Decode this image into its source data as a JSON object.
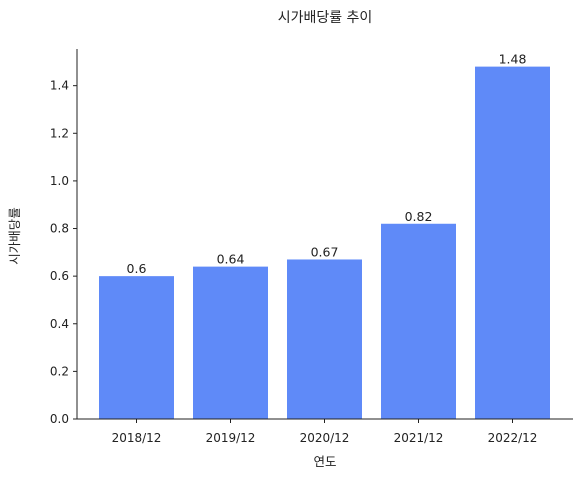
{
  "chart_data": {
    "type": "bar",
    "title": "시가배당률 추이",
    "xlabel": "연도",
    "ylabel": "시가배당률",
    "categories": [
      "2018/12",
      "2019/12",
      "2020/12",
      "2021/12",
      "2022/12"
    ],
    "values": [
      0.6,
      0.64,
      0.67,
      0.82,
      1.48
    ],
    "data_labels": [
      "0.6",
      "0.64",
      "0.67",
      "0.82",
      "1.48"
    ],
    "ylim": [
      0,
      1.554
    ],
    "yticks": [
      0.0,
      0.2,
      0.4,
      0.6,
      0.8,
      1.0,
      1.2,
      1.4
    ],
    "ytick_labels": [
      "0.0",
      "0.2",
      "0.4",
      "0.6",
      "0.8",
      "1.0",
      "1.2",
      "1.4"
    ],
    "grid": false,
    "bar_color": "#5f8af8"
  }
}
